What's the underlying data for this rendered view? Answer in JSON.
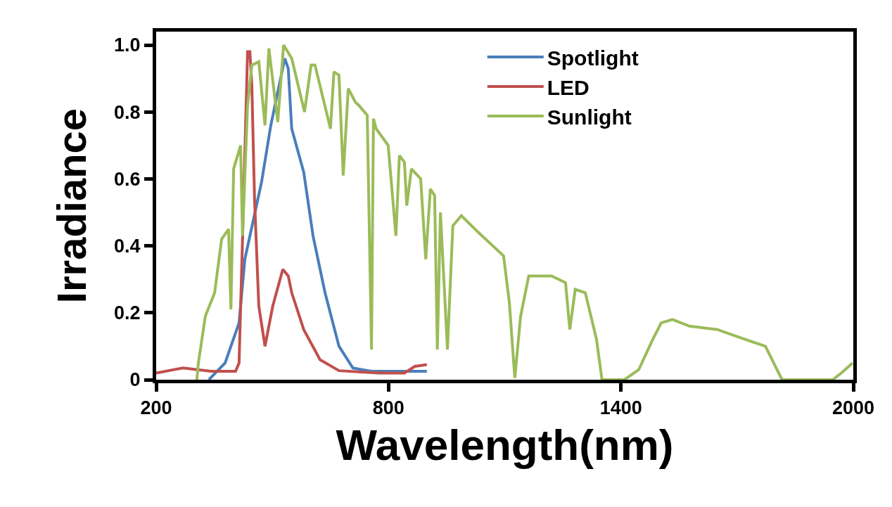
{
  "chart_data": {
    "type": "line",
    "xlabel": "Wavelength(nm)",
    "ylabel": "Irradiance",
    "xlim": [
      200,
      2000
    ],
    "ylim": [
      0,
      1.04
    ],
    "xticks": [
      200,
      800,
      1400,
      2000
    ],
    "yticks": [
      0,
      {
        "value": 0.2,
        "label": "0.2"
      },
      {
        "value": 0.4,
        "label": "0.4"
      },
      {
        "value": 0.6,
        "label": "0.6"
      },
      {
        "value": 0.8,
        "label": "0.8"
      },
      {
        "value": 1,
        "label": "1.0"
      }
    ],
    "grid": false,
    "legend": "top right",
    "marker": "none",
    "line_style": "solid",
    "series": [
      {
        "name": "Spotlight",
        "color": "#4a7ebb",
        "x": [
          336,
          378,
          414,
          429,
          472,
          496,
          532,
          541,
          550,
          581,
          605,
          636,
          672,
          708,
          759,
          813,
          899
        ],
        "values": [
          0,
          0.05,
          0.17,
          0.36,
          0.59,
          0.76,
          0.96,
          0.93,
          0.75,
          0.62,
          0.43,
          0.26,
          0.1,
          0.035,
          0.025,
          0.025,
          0.025
        ]
      },
      {
        "name": "LED",
        "color": "#c0504d",
        "x": [
          200,
          269,
          342,
          405,
          414,
          423,
          436,
          442,
          447,
          454,
          465,
          481,
          501,
          527,
          541,
          550,
          581,
          623,
          672,
          777,
          841,
          868,
          899
        ],
        "values": [
          0.02,
          0.035,
          0.025,
          0.025,
          0.05,
          0.42,
          0.98,
          0.98,
          0.88,
          0.54,
          0.22,
          0.1,
          0.22,
          0.33,
          0.31,
          0.26,
          0.15,
          0.06,
          0.027,
          0.02,
          0.02,
          0.04,
          0.045
        ]
      },
      {
        "name": "Sunlight",
        "color": "#9bbb59",
        "x": [
          305,
          309,
          327,
          351,
          369,
          387,
          393,
          400,
          418,
          423,
          436,
          447,
          465,
          481,
          491,
          514,
          529,
          550,
          583,
          600,
          610,
          650,
          659,
          672,
          683,
          696,
          714,
          723,
          745,
          756,
          761,
          768,
          799,
          819,
          828,
          841,
          847,
          859,
          883,
          896,
          908,
          919,
          926,
          934,
          952,
          966,
          988,
          1032,
          1097,
          1112,
          1126,
          1141,
          1162,
          1221,
          1257,
          1268,
          1282,
          1308,
          1337,
          1351,
          1409,
          1446,
          1482,
          1504,
          1533,
          1577,
          1649,
          1722,
          1773,
          1816,
          1947,
          1969,
          1998
        ],
        "values": [
          0,
          0.05,
          0.19,
          0.26,
          0.42,
          0.45,
          0.21,
          0.63,
          0.7,
          0.43,
          0.82,
          0.94,
          0.95,
          0.76,
          0.99,
          0.77,
          1,
          0.96,
          0.8,
          0.94,
          0.94,
          0.75,
          0.92,
          0.91,
          0.61,
          0.87,
          0.83,
          0.82,
          0.79,
          0.09,
          0.78,
          0.75,
          0.7,
          0.43,
          0.67,
          0.65,
          0.52,
          0.63,
          0.6,
          0.36,
          0.57,
          0.55,
          0.09,
          0.5,
          0.09,
          0.46,
          0.49,
          0.44,
          0.37,
          0.23,
          0.005,
          0.19,
          0.31,
          0.31,
          0.29,
          0.15,
          0.27,
          0.26,
          0.12,
          0,
          0,
          0.03,
          0.12,
          0.17,
          0.18,
          0.16,
          0.15,
          0.12,
          0.1,
          0,
          0,
          0.02,
          0.05
        ]
      }
    ]
  }
}
